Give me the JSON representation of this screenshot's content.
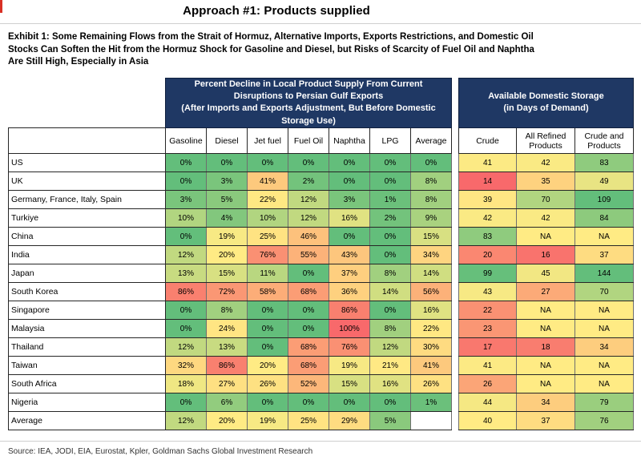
{
  "page": {
    "title": "Approach #1: Products supplied",
    "exhibit_lines": [
      "Exhibit 1: Some Remaining Flows from the Strait of Hormuz, Alternative Imports, Exports Restrictions, and Domestic Oil",
      "Stocks Can Soften the Hit from the Hormuz Shock for Gasoline and Diesel, but Risks of Scarcity of Fuel Oil and Naphtha",
      "Are Still High, Especially in Asia"
    ],
    "source": "Source: IEA, JODI, EIA, Eurostat, Kpler, Goldman Sachs Global Investment Research"
  },
  "chart_data": {
    "type": "heatmap",
    "title": "Approach #1: Products supplied",
    "group_headers": [
      {
        "lines": [
          "Percent Decline in Local Product Supply From Current Disruptions to Persian Gulf Exports",
          "(After Imports and Exports Adjustment, But Before Domestic Storage Use)"
        ]
      },
      {
        "lines": [
          "Available Domestic Storage",
          "(in Days of Demand)"
        ]
      }
    ],
    "percent_columns": [
      "Gasoline",
      "Diesel",
      "Jet fuel",
      "Fuel Oil",
      "Naphtha",
      "LPG",
      "Average"
    ],
    "storage_columns": [
      "Crude",
      "All Refined Products",
      "Crude and Products"
    ],
    "rows": [
      {
        "country": "US",
        "percent": [
          0,
          0,
          0,
          0,
          0,
          0,
          0
        ],
        "storage": [
          41,
          42,
          83
        ]
      },
      {
        "country": "UK",
        "percent": [
          0,
          3,
          41,
          2,
          0,
          0,
          8
        ],
        "storage": [
          14,
          35,
          49
        ]
      },
      {
        "country": "Germany, France, Italy, Spain",
        "percent": [
          3,
          5,
          22,
          12,
          3,
          1,
          8
        ],
        "storage": [
          39,
          70,
          109
        ]
      },
      {
        "country": "Turkiye",
        "percent": [
          10,
          4,
          10,
          12,
          16,
          2,
          9
        ],
        "storage": [
          42,
          42,
          84
        ]
      },
      {
        "country": "China",
        "percent": [
          0,
          19,
          25,
          46,
          0,
          0,
          15
        ],
        "storage": [
          83,
          "NA",
          "NA"
        ]
      },
      {
        "country": "India",
        "percent": [
          12,
          20,
          76,
          55,
          43,
          0,
          34
        ],
        "storage": [
          20,
          16,
          37
        ]
      },
      {
        "country": "Japan",
        "percent": [
          13,
          15,
          11,
          0,
          37,
          8,
          14
        ],
        "storage": [
          99,
          45,
          144
        ]
      },
      {
        "country": "South Korea",
        "percent": [
          86,
          72,
          58,
          68,
          36,
          14,
          56
        ],
        "storage": [
          43,
          27,
          70
        ]
      },
      {
        "country": "Singapore",
        "percent": [
          0,
          8,
          0,
          0,
          86,
          0,
          16
        ],
        "storage": [
          22,
          "NA",
          "NA"
        ]
      },
      {
        "country": "Malaysia",
        "percent": [
          0,
          24,
          0,
          0,
          100,
          8,
          22
        ],
        "storage": [
          23,
          "NA",
          "NA"
        ]
      },
      {
        "country": "Thailand",
        "percent": [
          12,
          13,
          0,
          68,
          76,
          12,
          30
        ],
        "storage": [
          17,
          18,
          34
        ]
      },
      {
        "country": "Taiwan",
        "percent": [
          32,
          86,
          20,
          68,
          19,
          21,
          41
        ],
        "storage": [
          41,
          "NA",
          "NA"
        ]
      },
      {
        "country": "South Africa",
        "percent": [
          18,
          27,
          26,
          52,
          15,
          16,
          26
        ],
        "storage": [
          26,
          "NA",
          "NA"
        ]
      },
      {
        "country": "Nigeria",
        "percent": [
          0,
          6,
          0,
          0,
          0,
          0,
          1
        ],
        "storage": [
          44,
          34,
          79
        ]
      },
      {
        "country": "Average",
        "percent": [
          12,
          20,
          19,
          25,
          29,
          5,
          null
        ],
        "storage": [
          40,
          37,
          76
        ]
      }
    ],
    "colors": {
      "low": "#63BE7B",
      "mid": "#FFEB84",
      "high": "#F8696B",
      "na": "#FFEB84",
      "header_bg": "#1F3864"
    },
    "color_scale_notes": {
      "percent": "green=0%, yellow=20%, red=100%",
      "days": "red=14, yellow=40, green>=100; NA = yellow"
    }
  }
}
